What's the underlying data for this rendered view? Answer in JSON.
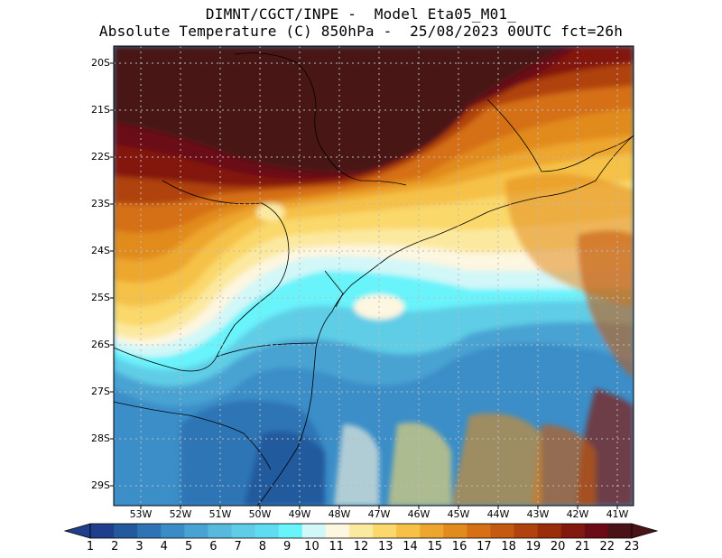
{
  "header": {
    "line1": "DIMNT/CGCT/INPE -  Model Eta05_M01_",
    "line2": "Absolute Temperature (C) 850hPa -  25/08/2023 00UTC fct=26h"
  },
  "map": {
    "lat_labels": [
      "20S",
      "21S",
      "22S",
      "23S",
      "24S",
      "25S",
      "26S",
      "27S",
      "28S",
      "29S"
    ],
    "lon_labels": [
      "53W",
      "52W",
      "51W",
      "50W",
      "49W",
      "48W",
      "47W",
      "46W",
      "45W",
      "44W",
      "43W",
      "42W",
      "41W"
    ],
    "lat_range": [
      -29.5,
      -19.7
    ],
    "lon_range": [
      -53.5,
      -40.7
    ],
    "grid": true
  },
  "colorbar": {
    "labels": [
      "1",
      "2",
      "3",
      "4",
      "5",
      "6",
      "7",
      "8",
      "9",
      "10",
      "11",
      "12",
      "13",
      "14",
      "15",
      "16",
      "17",
      "18",
      "19",
      "20",
      "21",
      "22",
      "23"
    ],
    "colors": [
      "#1f3f8c",
      "#235a9e",
      "#2e74b5",
      "#3a8cc6",
      "#49a3d2",
      "#57b9dc",
      "#5fcde6",
      "#5fdcf0",
      "#69f3fb",
      "#d2f7f8",
      "#fdf6e0",
      "#fce9a0",
      "#fad86b",
      "#f6c146",
      "#eda62d",
      "#e18b1e",
      "#d57014",
      "#c35a10",
      "#b0420d",
      "#9a2e0b",
      "#83180f",
      "#6a0b15",
      "#4a1416"
    ],
    "extend": "both"
  }
}
